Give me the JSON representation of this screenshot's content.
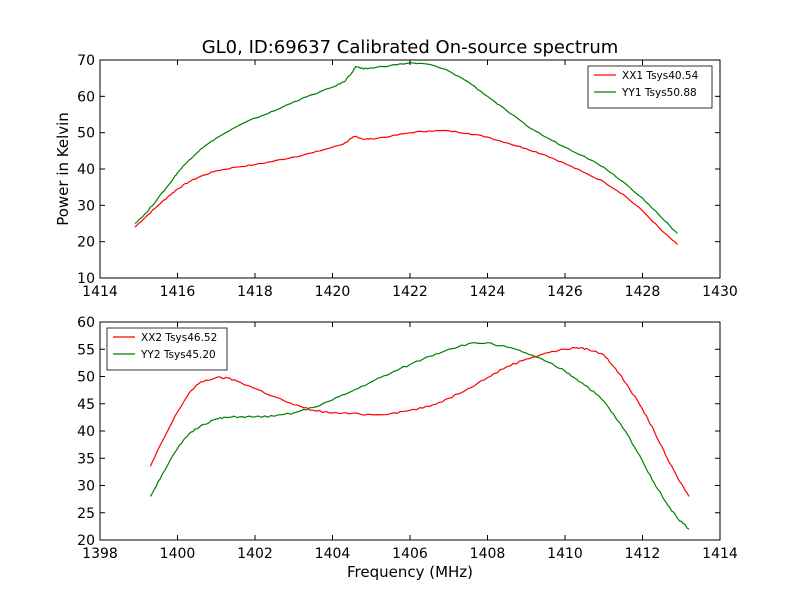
{
  "figure": {
    "title": "GL0, ID:69637 Calibrated On-source spectrum",
    "xlabel": "Frequency (MHz)"
  },
  "chart_data": [
    {
      "type": "line",
      "title": "GL0, ID:69637 Calibrated On-source spectrum",
      "xlabel": "",
      "ylabel": "Power in Kelvin",
      "xlim": [
        1414,
        1430
      ],
      "ylim": [
        10,
        70
      ],
      "xticks": [
        1414,
        1416,
        1418,
        1420,
        1422,
        1424,
        1426,
        1428,
        1430
      ],
      "yticks": [
        10,
        20,
        30,
        40,
        50,
        60,
        70
      ],
      "grid": false,
      "legend_position": "top-right",
      "series": [
        {
          "name": "XX1 Tsys40.54",
          "color": "#ff0000",
          "x": [
            1414.9,
            1415.2,
            1415.5,
            1415.8,
            1416.0,
            1416.3,
            1416.6,
            1417.0,
            1417.5,
            1418.0,
            1418.5,
            1419.0,
            1419.5,
            1420.0,
            1420.3,
            1420.5,
            1420.6,
            1420.8,
            1421.0,
            1421.5,
            1422.0,
            1422.5,
            1423.0,
            1423.5,
            1424.0,
            1424.5,
            1425.0,
            1425.5,
            1426.0,
            1426.5,
            1427.0,
            1427.5,
            1428.0,
            1428.5,
            1428.9
          ],
          "y": [
            24.0,
            27.0,
            30.0,
            32.8,
            34.5,
            36.5,
            38.0,
            39.5,
            40.5,
            41.2,
            42.2,
            43.3,
            44.5,
            46.0,
            47.0,
            48.5,
            49.0,
            48.2,
            48.3,
            49.0,
            50.0,
            50.5,
            50.5,
            49.8,
            48.8,
            47.2,
            45.6,
            43.8,
            41.5,
            39.0,
            36.5,
            33.0,
            28.5,
            23.0,
            19.2
          ]
        },
        {
          "name": "YY1 Tsys50.88",
          "color": "#008000",
          "x": [
            1414.9,
            1415.2,
            1415.5,
            1415.8,
            1416.0,
            1416.3,
            1416.6,
            1417.0,
            1417.5,
            1418.0,
            1418.5,
            1419.0,
            1419.5,
            1420.0,
            1420.3,
            1420.5,
            1420.6,
            1420.8,
            1421.0,
            1421.5,
            1422.0,
            1422.5,
            1423.0,
            1423.5,
            1424.0,
            1424.5,
            1425.0,
            1425.5,
            1426.0,
            1426.5,
            1427.0,
            1427.5,
            1428.0,
            1428.5,
            1428.9
          ],
          "y": [
            25.0,
            28.0,
            32.0,
            36.0,
            39.0,
            42.5,
            45.5,
            48.5,
            51.5,
            54.0,
            56.0,
            58.5,
            60.5,
            62.5,
            64.0,
            66.5,
            68.2,
            67.5,
            67.8,
            68.5,
            69.2,
            68.8,
            67.0,
            64.0,
            60.0,
            56.0,
            52.0,
            48.8,
            46.0,
            43.5,
            40.5,
            36.5,
            32.0,
            26.5,
            22.3
          ]
        }
      ]
    },
    {
      "type": "line",
      "title": "",
      "xlabel": "Frequency (MHz)",
      "ylabel": "",
      "xlim": [
        1398,
        1414
      ],
      "ylim": [
        20,
        60
      ],
      "xticks": [
        1398,
        1400,
        1402,
        1404,
        1406,
        1408,
        1410,
        1412,
        1414
      ],
      "yticks": [
        20,
        25,
        30,
        35,
        40,
        45,
        50,
        55,
        60
      ],
      "grid": false,
      "legend_position": "top-left",
      "series": [
        {
          "name": "XX2 Tsys46.52",
          "color": "#ff0000",
          "x": [
            1399.3,
            1399.6,
            1400.0,
            1400.3,
            1400.6,
            1401.0,
            1401.3,
            1401.6,
            1402.0,
            1402.5,
            1403.0,
            1403.5,
            1404.0,
            1404.5,
            1405.0,
            1405.5,
            1406.0,
            1406.5,
            1407.0,
            1407.5,
            1408.0,
            1408.5,
            1409.0,
            1409.5,
            1410.0,
            1410.3,
            1410.6,
            1411.0,
            1411.3,
            1411.6,
            1412.0,
            1412.3,
            1412.6,
            1412.9,
            1413.2
          ],
          "y": [
            33.5,
            38.0,
            43.5,
            47.0,
            49.0,
            49.8,
            49.7,
            49.0,
            47.8,
            46.3,
            44.8,
            43.8,
            43.3,
            43.2,
            43.0,
            43.2,
            43.8,
            44.5,
            46.0,
            47.8,
            49.8,
            51.8,
            53.2,
            54.3,
            55.0,
            55.3,
            55.0,
            54.0,
            51.5,
            48.5,
            44.0,
            40.0,
            35.5,
            31.5,
            28.0
          ]
        },
        {
          "name": "YY2 Tsys45.20",
          "color": "#008000",
          "x": [
            1399.3,
            1399.6,
            1400.0,
            1400.3,
            1400.6,
            1401.0,
            1401.3,
            1401.6,
            1402.0,
            1402.5,
            1403.0,
            1403.5,
            1404.0,
            1404.5,
            1405.0,
            1405.5,
            1406.0,
            1406.5,
            1407.0,
            1407.5,
            1408.0,
            1408.5,
            1409.0,
            1409.5,
            1410.0,
            1410.3,
            1410.6,
            1411.0,
            1411.3,
            1411.6,
            1412.0,
            1412.3,
            1412.6,
            1412.9,
            1413.2
          ],
          "y": [
            28.0,
            32.0,
            36.8,
            39.5,
            41.0,
            42.2,
            42.5,
            42.6,
            42.6,
            42.7,
            43.3,
            44.3,
            45.7,
            47.3,
            49.0,
            50.6,
            52.2,
            53.7,
            55.0,
            56.0,
            56.2,
            55.4,
            54.3,
            52.8,
            51.0,
            49.5,
            48.0,
            45.5,
            42.5,
            39.5,
            34.5,
            30.5,
            27.0,
            24.0,
            22.0
          ]
        }
      ]
    }
  ]
}
